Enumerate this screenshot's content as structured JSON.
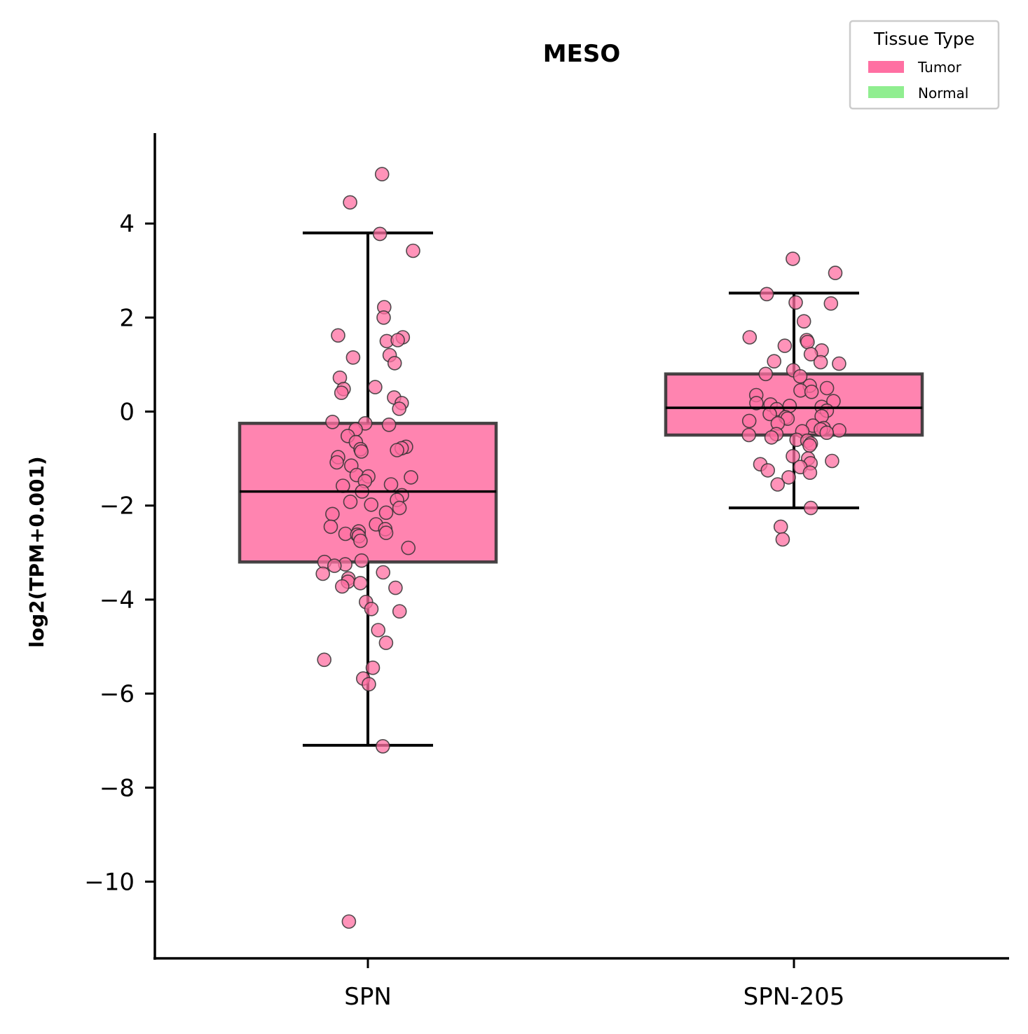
{
  "chart_data": {
    "type": "box",
    "title": "MESO",
    "xlabel": "",
    "ylabel": "log2(TPM+0.001)",
    "ylim": [
      -11.6,
      5.85
    ],
    "yticks": [
      4,
      2,
      0,
      -2,
      -4,
      -6,
      -8,
      -10
    ],
    "ytick_labels": [
      "4",
      "2",
      "0",
      "−2",
      "−4",
      "−6",
      "−8",
      "−10"
    ],
    "categories": [
      "SPN",
      "SPN-205"
    ],
    "legend": {
      "title": "Tissue Type",
      "placement": "top-right",
      "entries": [
        {
          "label": "Tumor",
          "color": "#ff6fa2"
        },
        {
          "label": "Normal",
          "color": "#90ee90"
        }
      ]
    },
    "colors": {
      "tumor": "#ff6fa2",
      "normal": "#90ee90",
      "box_edge": "#333333",
      "whisker": "#000000"
    },
    "boxes": [
      {
        "category": "SPN",
        "q1": -3.2,
        "median": -1.7,
        "q3": -0.25,
        "whisker_low": -7.1,
        "whisker_high": 3.8
      },
      {
        "category": "SPN-205",
        "q1": -0.5,
        "median": 0.08,
        "q3": 0.8,
        "whisker_low": -2.05,
        "whisker_high": 2.52
      }
    ],
    "points": [
      {
        "category": "SPN",
        "values": [
          5.05,
          4.45,
          3.78,
          3.42,
          2.22,
          2.0,
          1.62,
          1.58,
          1.5,
          1.52,
          1.2,
          1.15,
          1.03,
          0.72,
          0.52,
          0.48,
          0.4,
          0.3,
          0.18,
          0.06,
          -0.22,
          -0.25,
          -0.28,
          -0.38,
          -0.52,
          -0.65,
          -0.75,
          -0.78,
          -0.8,
          -0.85,
          -0.82,
          -0.97,
          -1.08,
          -1.15,
          -1.35,
          -1.38,
          -1.4,
          -1.48,
          -1.55,
          -1.58,
          -1.7,
          -1.78,
          -1.88,
          -1.92,
          -1.98,
          -2.05,
          -2.15,
          -2.18,
          -2.4,
          -2.45,
          -2.5,
          -2.55,
          -2.58,
          -2.6,
          -2.62,
          -2.65,
          -2.75,
          -2.9,
          -3.17,
          -3.2,
          -3.25,
          -3.28,
          -3.42,
          -3.45,
          -3.55,
          -3.62,
          -3.65,
          -3.72,
          -3.75,
          -4.05,
          -4.2,
          -4.25,
          -4.65,
          -4.92,
          -5.28,
          -5.45,
          -5.68,
          -5.8,
          -7.12,
          -10.85
        ]
      },
      {
        "category": "SPN-205",
        "values": [
          3.25,
          2.95,
          2.5,
          2.32,
          2.3,
          1.92,
          1.58,
          1.52,
          1.48,
          1.4,
          1.3,
          1.22,
          1.07,
          1.05,
          1.02,
          0.88,
          0.8,
          0.75,
          0.55,
          0.5,
          0.45,
          0.42,
          0.35,
          0.22,
          0.18,
          0.15,
          0.12,
          0.1,
          0.05,
          0.02,
          -0.05,
          -0.1,
          -0.12,
          -0.15,
          -0.2,
          -0.25,
          -0.3,
          -0.35,
          -0.38,
          -0.4,
          -0.42,
          -0.45,
          -0.48,
          -0.5,
          -0.55,
          -0.6,
          -0.62,
          -0.68,
          -0.72,
          -0.95,
          -1.0,
          -1.05,
          -1.1,
          -1.12,
          -1.18,
          -1.25,
          -1.3,
          -1.4,
          -1.55,
          -2.05,
          -2.45,
          -2.72
        ]
      }
    ]
  }
}
